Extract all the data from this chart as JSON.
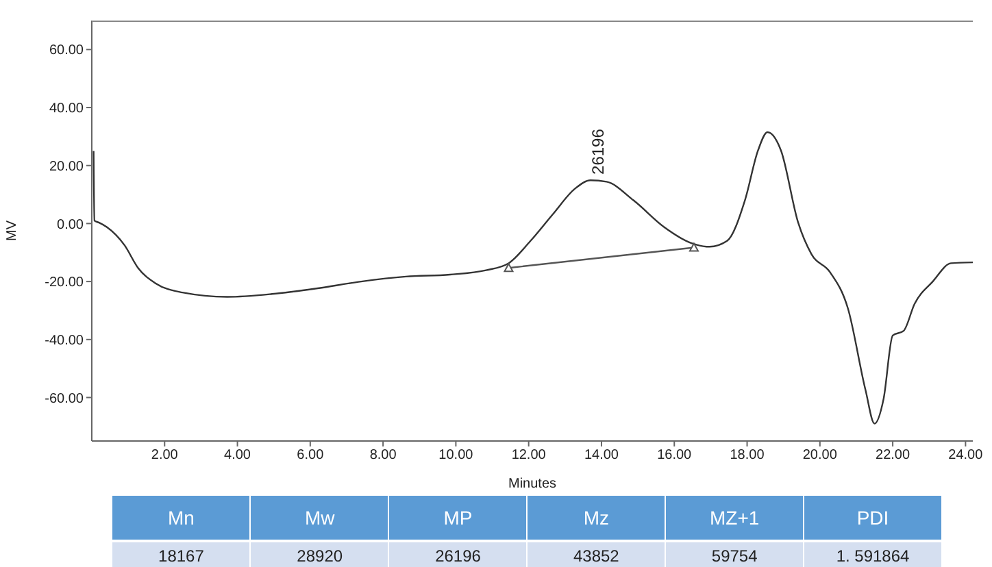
{
  "chart_data": {
    "type": "line",
    "xlabel": "Minutes",
    "ylabel": "MV",
    "xlim": [
      0,
      24.2
    ],
    "ylim": [
      -75,
      70
    ],
    "xticks": [
      {
        "value": 2,
        "label": "2.00"
      },
      {
        "value": 4,
        "label": "4.00"
      },
      {
        "value": 6,
        "label": "6.00"
      },
      {
        "value": 8,
        "label": "8.00"
      },
      {
        "value": 10,
        "label": "10.00"
      },
      {
        "value": 12,
        "label": "12.00"
      },
      {
        "value": 14,
        "label": "14.00"
      },
      {
        "value": 16,
        "label": "16.00"
      },
      {
        "value": 18,
        "label": "18.00"
      },
      {
        "value": 20,
        "label": "20.00"
      },
      {
        "value": 22,
        "label": "22.00"
      },
      {
        "value": 24,
        "label": "24.00"
      }
    ],
    "yticks": [
      {
        "value": -60,
        "label": "-60.00"
      },
      {
        "value": -40,
        "label": "-40.00"
      },
      {
        "value": -20,
        "label": "-20.00"
      },
      {
        "value": 0,
        "label": "0.00"
      },
      {
        "value": 20,
        "label": "20.00"
      },
      {
        "value": 40,
        "label": "40.00"
      },
      {
        "value": 60,
        "label": "60.00"
      }
    ],
    "marker": "none",
    "line_style": "solid",
    "series": [
      {
        "color": "#333333",
        "x": [
          0.05,
          0.07,
          0.2,
          0.41,
          0.9,
          1.27,
          1.75,
          2.49,
          3.72,
          4.95,
          6.17,
          7.4,
          8.63,
          9.84,
          10.83,
          11.45,
          12.05,
          12.67,
          13.28,
          13.7,
          14.14,
          14.88,
          15.73,
          16.46,
          16.97,
          17.45,
          17.94,
          18.3,
          18.56,
          18.93,
          19.4,
          19.77,
          20.28,
          20.77,
          21.25,
          21.5,
          21.75,
          22.0,
          22.3,
          22.6,
          23.1,
          23.6,
          24.2
        ],
        "values": [
          25,
          1,
          0.3,
          -1.2,
          -7.5,
          -15.3,
          -20.6,
          -23.8,
          -25.3,
          -24.3,
          -22.4,
          -20,
          -18.3,
          -17.6,
          -16.1,
          -13.7,
          -6,
          3.3,
          12.1,
          14.9,
          14.4,
          8,
          -1.3,
          -6.7,
          -8,
          -6,
          8,
          25.2,
          31.5,
          25.2,
          0.4,
          -10.6,
          -16.8,
          -29.3,
          -57.3,
          -69,
          -60.4,
          -38.6,
          -37,
          -27.7,
          -20,
          -13.7,
          -13.4
        ]
      },
      {
        "type": "line",
        "color": "#555555",
        "marker": "triangle",
        "x": [
          11.45,
          16.54
        ],
        "values": [
          -15.3,
          -8.3
        ]
      }
    ],
    "annotations": [
      {
        "text": "26196",
        "x": 13.9,
        "y": 15
      },
      "Mn",
      "Mw",
      "MP",
      "Mz",
      "MZ+1",
      "PDI",
      "18167",
      "28920",
      "26196",
      "43852",
      "59754",
      "1. 591864"
    ]
  }
}
